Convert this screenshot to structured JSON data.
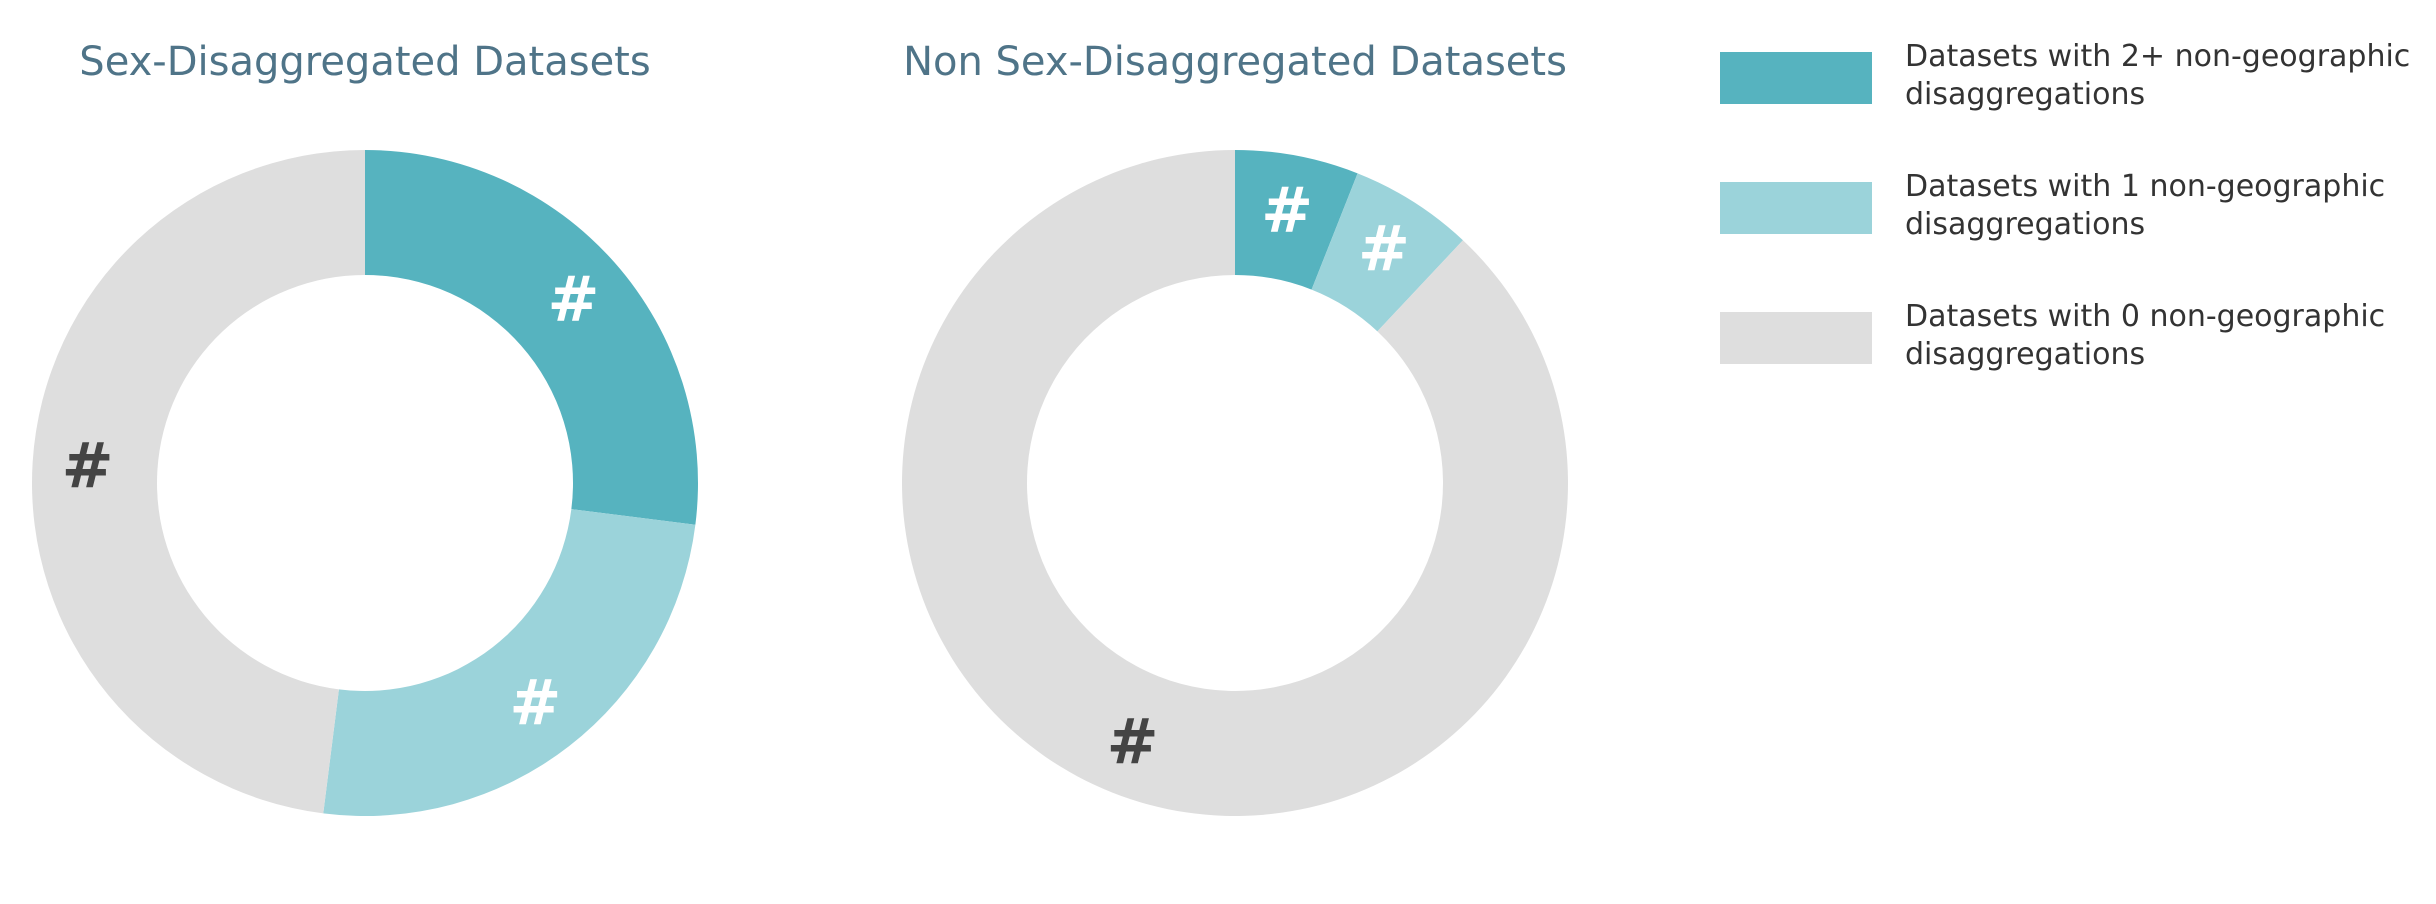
{
  "chart_data": [
    {
      "type": "pie",
      "title": "Sex-Disaggregated Datasets",
      "donut": true,
      "slices": [
        {
          "series": "2+",
          "value": 27,
          "label": "#"
        },
        {
          "series": "1",
          "value": 25,
          "label": "#"
        },
        {
          "series": "0",
          "value": 48,
          "label": "#"
        }
      ]
    },
    {
      "type": "pie",
      "title": "Non Sex-Disaggregated Datasets",
      "donut": true,
      "slices": [
        {
          "series": "2+",
          "value": 6,
          "label": "#"
        },
        {
          "series": "1",
          "value": 6,
          "label": "#"
        },
        {
          "series": "0",
          "value": 88,
          "label": "#"
        }
      ]
    }
  ],
  "legend": {
    "placement": "right",
    "items": [
      {
        "key": "2+",
        "line1": "Datasets with 2+ non-geographic",
        "line2": "disaggregations",
        "color": "#56b3bf"
      },
      {
        "key": "1",
        "line1": "Datasets with 1 non-geographic",
        "line2": "disaggregations",
        "color": "#9bd3da"
      },
      {
        "key": "0",
        "line1": "Datasets with 0 non-geographic",
        "line2": "disaggregations",
        "color": "#dedede"
      }
    ]
  },
  "colors": {
    "label_on_teal": "#ffffff",
    "label_on_gray": "#444444",
    "title": "#4f7488"
  }
}
